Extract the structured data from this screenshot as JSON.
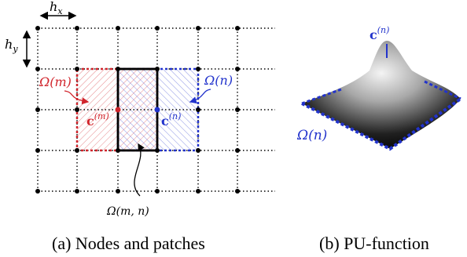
{
  "colors": {
    "red": "#d1252c",
    "blue": "#2233cc",
    "grid": "#000000",
    "pu_dark": "#000000",
    "pu_light": "#f2f2f2"
  },
  "labels": {
    "hx": "h",
    "hx_sub": "x",
    "hy": "h",
    "hy_sub": "y",
    "omega_m": "Ω(m)",
    "omega_n": "Ω(n)",
    "omega_mn": "Ω(m, n)",
    "c_m_base": "c",
    "c_m_sup": "(m)",
    "c_n_base": "c",
    "c_n_sup": "(n)",
    "pu_c_base": "c",
    "pu_c_sup": "(n)",
    "pu_omega": "Ω(n)"
  },
  "captions": {
    "a": "(a) Nodes and patches",
    "b": "(b) PU-function"
  }
}
